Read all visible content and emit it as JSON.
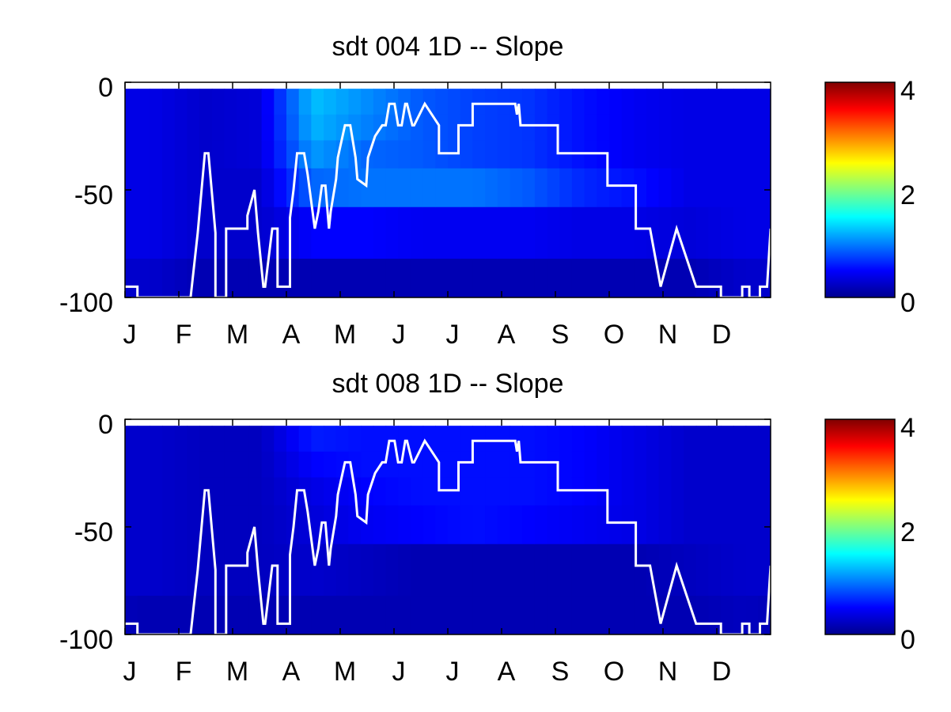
{
  "chart_data": [
    {
      "type": "heatmap",
      "title": "sdt  004 1D   -- Slope",
      "x_tick_labels": [
        "J",
        "F",
        "M",
        "A",
        "M",
        "J",
        "J",
        "A",
        "S",
        "O",
        "N",
        "D"
      ],
      "xlim": [
        1,
        365
      ],
      "y_ticks": [
        0,
        -50,
        -100
      ],
      "y_tick_labels": [
        "0",
        "-50",
        "-100"
      ],
      "ylim": [
        -100,
        0
      ],
      "colorbar": {
        "colormap": "jet",
        "range": [
          0,
          4
        ],
        "ticks": [
          0,
          2,
          4
        ],
        "tick_labels": [
          "0",
          "2",
          "4"
        ]
      },
      "depth_bins": [
        -3,
        -15,
        -27,
        -40,
        -58,
        -82,
        -100
      ],
      "cell_values_per_month": [
        [
          0.4,
          0.4,
          0.4,
          0.4,
          0.4,
          0.3
        ],
        [
          0.3,
          0.3,
          0.3,
          0.3,
          0.3,
          0.2
        ],
        [
          0.35,
          0.35,
          0.35,
          0.3,
          0.3,
          0.2
        ],
        [
          1.25,
          1.2,
          1.1,
          0.9,
          0.5,
          0.2
        ],
        [
          1.05,
          1.0,
          0.9,
          0.95,
          0.5,
          0.2
        ],
        [
          0.85,
          0.85,
          0.85,
          0.95,
          0.45,
          0.2
        ],
        [
          0.75,
          0.75,
          0.75,
          0.95,
          0.45,
          0.2
        ],
        [
          0.7,
          0.7,
          0.7,
          0.85,
          0.45,
          0.2
        ],
        [
          0.55,
          0.55,
          0.55,
          0.65,
          0.4,
          0.2
        ],
        [
          0.45,
          0.45,
          0.45,
          0.55,
          0.4,
          0.2
        ],
        [
          0.4,
          0.4,
          0.4,
          0.4,
          0.35,
          0.2
        ],
        [
          0.4,
          0.4,
          0.4,
          0.4,
          0.4,
          0.3
        ]
      ],
      "line": {
        "color": "#ffffff",
        "x": [
          1,
          8,
          8,
          38,
          42,
          46,
          48,
          52,
          52,
          58,
          58,
          70,
          70,
          74,
          76,
          79,
          80,
          84,
          84,
          87,
          87,
          94,
          94,
          96,
          98,
          102,
          104,
          108,
          110,
          112,
          114,
          116,
          117,
          120,
          121,
          125,
          128,
          131,
          132,
          137,
          138,
          142,
          146,
          148,
          150,
          153,
          155,
          157,
          159,
          160,
          163,
          164,
          170,
          170,
          178,
          178,
          181,
          189,
          189,
          197,
          197,
          221,
          222,
          223,
          224,
          232,
          232,
          245,
          245,
          273,
          273,
          289,
          289,
          297,
          297,
          303,
          303,
          312,
          312,
          323,
          323,
          337,
          337,
          349,
          349,
          353,
          353,
          359,
          359,
          363,
          365
        ],
        "y": [
          -95,
          -95,
          -100,
          -100,
          -70,
          -33,
          -33,
          -70,
          -100,
          -100,
          -68,
          -68,
          -62,
          -50,
          -70,
          -95,
          -95,
          -68,
          -68,
          -68,
          -95,
          -95,
          -63,
          -50,
          -33,
          -33,
          -43,
          -68,
          -60,
          -48,
          -48,
          -68,
          -60,
          -45,
          -35,
          -20,
          -20,
          -35,
          -45,
          -48,
          -35,
          -25,
          -20,
          -20,
          -10,
          -10,
          -20,
          -20,
          -10,
          -10,
          -20,
          -20,
          -10,
          -10,
          -20,
          -33,
          -33,
          -33,
          -20,
          -20,
          -10,
          -10,
          -15,
          -10,
          -20,
          -20,
          -20,
          -20,
          -33,
          -33,
          -48,
          -48,
          -68,
          -68,
          -68,
          -95,
          -95,
          -68,
          -68,
          -95,
          -95,
          -95,
          -100,
          -100,
          -95,
          -95,
          -100,
          -100,
          -95,
          -95,
          -68
        ]
      }
    },
    {
      "type": "heatmap",
      "title": "sdt  008 1D   -- Slope",
      "x_tick_labels": [
        "J",
        "F",
        "M",
        "A",
        "M",
        "J",
        "J",
        "A",
        "S",
        "O",
        "N",
        "D"
      ],
      "xlim": [
        1,
        365
      ],
      "y_ticks": [
        0,
        -50,
        -100
      ],
      "y_tick_labels": [
        "0",
        "-50",
        "-100"
      ],
      "ylim": [
        -100,
        0
      ],
      "colorbar": {
        "colormap": "jet",
        "range": [
          0,
          4
        ],
        "ticks": [
          0,
          2,
          4
        ],
        "tick_labels": [
          "0",
          "2",
          "4"
        ]
      },
      "depth_bins": [
        -3,
        -15,
        -27,
        -40,
        -58,
        -82,
        -100
      ],
      "cell_values_per_month": [
        [
          0.3,
          0.3,
          0.3,
          0.3,
          0.3,
          0.2
        ],
        [
          0.25,
          0.25,
          0.25,
          0.25,
          0.25,
          0.2
        ],
        [
          0.25,
          0.25,
          0.25,
          0.25,
          0.25,
          0.2
        ],
        [
          0.6,
          0.5,
          0.4,
          0.35,
          0.3,
          0.2
        ],
        [
          0.55,
          0.55,
          0.5,
          0.45,
          0.25,
          0.2
        ],
        [
          0.55,
          0.55,
          0.55,
          0.5,
          0.2,
          0.2
        ],
        [
          0.55,
          0.55,
          0.55,
          0.55,
          0.2,
          0.2
        ],
        [
          0.55,
          0.55,
          0.55,
          0.5,
          0.2,
          0.2
        ],
        [
          0.5,
          0.5,
          0.5,
          0.45,
          0.2,
          0.2
        ],
        [
          0.4,
          0.4,
          0.4,
          0.4,
          0.2,
          0.2
        ],
        [
          0.3,
          0.3,
          0.3,
          0.3,
          0.25,
          0.2
        ],
        [
          0.3,
          0.3,
          0.3,
          0.3,
          0.3,
          0.25
        ]
      ],
      "line": {
        "color": "#ffffff",
        "x": [
          1,
          8,
          8,
          38,
          42,
          46,
          48,
          52,
          52,
          58,
          58,
          70,
          70,
          74,
          76,
          79,
          80,
          84,
          84,
          87,
          87,
          94,
          94,
          96,
          98,
          102,
          104,
          108,
          110,
          112,
          114,
          116,
          117,
          120,
          121,
          125,
          128,
          131,
          132,
          137,
          138,
          142,
          146,
          148,
          150,
          153,
          155,
          157,
          159,
          160,
          163,
          164,
          170,
          170,
          178,
          178,
          181,
          189,
          189,
          197,
          197,
          221,
          222,
          223,
          224,
          232,
          232,
          245,
          245,
          273,
          273,
          289,
          289,
          297,
          297,
          303,
          303,
          312,
          312,
          323,
          323,
          337,
          337,
          349,
          349,
          353,
          353,
          359,
          359,
          363,
          365
        ],
        "y": [
          -95,
          -95,
          -100,
          -100,
          -70,
          -33,
          -33,
          -70,
          -100,
          -100,
          -68,
          -68,
          -62,
          -50,
          -70,
          -95,
          -95,
          -68,
          -68,
          -68,
          -95,
          -95,
          -63,
          -50,
          -33,
          -33,
          -43,
          -68,
          -60,
          -48,
          -48,
          -68,
          -60,
          -45,
          -35,
          -20,
          -20,
          -35,
          -45,
          -48,
          -35,
          -25,
          -20,
          -20,
          -10,
          -10,
          -20,
          -20,
          -10,
          -10,
          -20,
          -20,
          -10,
          -10,
          -20,
          -33,
          -33,
          -33,
          -20,
          -20,
          -10,
          -10,
          -15,
          -10,
          -20,
          -20,
          -20,
          -20,
          -33,
          -33,
          -48,
          -48,
          -68,
          -68,
          -68,
          -95,
          -95,
          -68,
          -68,
          -95,
          -95,
          -95,
          -100,
          -100,
          -95,
          -95,
          -100,
          -100,
          -95,
          -95,
          -68
        ]
      }
    }
  ]
}
